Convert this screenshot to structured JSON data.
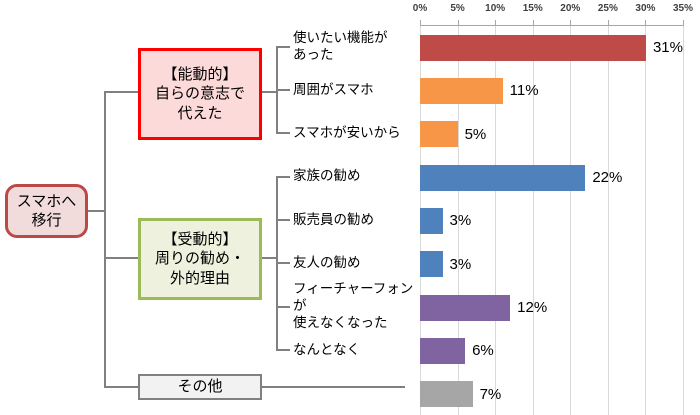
{
  "title_none_visible": "",
  "diagram": {
    "root_label": "スマホへ\n移行",
    "groups": [
      {
        "id": "active",
        "label": "【能動的】\n自らの意志で\n代えた"
      },
      {
        "id": "passive",
        "label": "【受動的】\n周りの勧め・\n外的理由"
      },
      {
        "id": "other",
        "label": "その他"
      }
    ]
  },
  "chart_data": {
    "type": "bar",
    "orientation": "horizontal",
    "title": "",
    "xlabel": "",
    "ylabel": "",
    "xlim": [
      0,
      35
    ],
    "grid": true,
    "axis_position": "top",
    "axis_ticks": [
      "0%",
      "5%",
      "10%",
      "15%",
      "20%",
      "25%",
      "30%",
      "35%"
    ],
    "categories": [
      "使いたい機能があった",
      "周囲がスマホ",
      "スマホが安いから",
      "家族の勧め",
      "販売員の勧め",
      "友人の勧め",
      "フィーチャーフォンが使えなくなった",
      "なんとなく",
      "その他"
    ],
    "display_labels": [
      "使いたい機能が\nあった",
      "周囲がスマホ",
      "スマホが安いから",
      "家族の勧め",
      "販売員の勧め",
      "友人の勧め",
      "フィーチャーフォンが\n使えなくなった",
      "なんとなく"
    ],
    "values": [
      31,
      11,
      5,
      22,
      3,
      3,
      12,
      6,
      7
    ],
    "value_labels": [
      "31%",
      "11%",
      "5%",
      "22%",
      "3%",
      "3%",
      "12%",
      "6%",
      "7%"
    ],
    "bar_colors": [
      "#BE4B48",
      "#F79646",
      "#F79646",
      "#4F81BD",
      "#4F81BD",
      "#4F81BD",
      "#8064A2",
      "#8064A2",
      "#A6A6A6"
    ],
    "group_of_category": [
      "active",
      "active",
      "active",
      "passive",
      "passive",
      "passive",
      "passive",
      "passive",
      "other"
    ]
  },
  "colors": {
    "root_box_border": "#B94A48",
    "root_box_fill": "#F2DCDB",
    "active_box_border": "#FE0000",
    "active_box_fill": "#FCDAD9",
    "passive_box_border": "#9BBB59",
    "passive_box_fill": "#EEF1DD",
    "other_box_border": "#808080",
    "other_box_fill": "#F2F2F2",
    "connector": "#808080",
    "gridline": "#D9D9D9",
    "axis_line": "#A6A6A6"
  }
}
